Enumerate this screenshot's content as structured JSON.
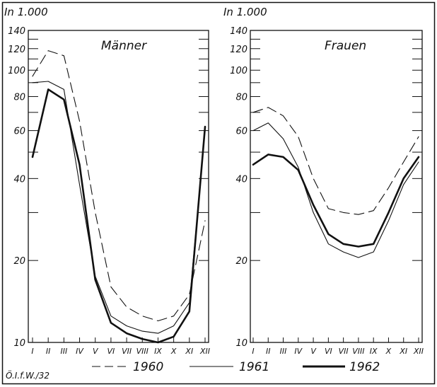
{
  "chart_data": [
    {
      "type": "line",
      "title": "Männer",
      "ylabel": "In 1.000",
      "yscale": "log",
      "ylim": [
        10,
        140
      ],
      "grid": false,
      "categories": [
        "I",
        "II",
        "III",
        "IV",
        "V",
        "VI",
        "VII",
        "VIII",
        "IX",
        "X",
        "XI",
        "XII"
      ],
      "yticks": [
        10,
        20,
        30,
        40,
        50,
        60,
        70,
        80,
        90,
        100,
        110,
        120,
        130,
        140
      ],
      "yticklabels": [
        "10",
        "20",
        "",
        "40",
        "",
        "60",
        "",
        "80",
        "",
        "100",
        "",
        "120",
        "",
        "140"
      ],
      "series": [
        {
          "name": "1960",
          "style": "dashed",
          "width": 1.1,
          "values": [
            95,
            118,
            113,
            65,
            30,
            16,
            13.5,
            12.5,
            12,
            12.5,
            15,
            28
          ]
        },
        {
          "name": "1961",
          "style": "solid",
          "width": 1.1,
          "values": [
            90,
            91,
            85,
            38,
            17.5,
            12.5,
            11.5,
            11,
            10.8,
            11.5,
            14,
            60
          ]
        },
        {
          "name": "1962",
          "style": "solid",
          "width": 2.6,
          "values": [
            48,
            85,
            78,
            45,
            17,
            11.8,
            10.8,
            10.3,
            10,
            10.5,
            13,
            62
          ]
        }
      ]
    },
    {
      "type": "line",
      "title": "Frauen",
      "ylabel": "In 1.000",
      "yscale": "log",
      "ylim": [
        10,
        140
      ],
      "grid": false,
      "categories": [
        "I",
        "II",
        "III",
        "IV",
        "V",
        "VI",
        "VII",
        "VIII",
        "IX",
        "X",
        "XI",
        "XII"
      ],
      "yticks": [
        10,
        20,
        30,
        40,
        50,
        60,
        70,
        80,
        90,
        100,
        110,
        120,
        130,
        140
      ],
      "yticklabels": [
        "10",
        "20",
        "",
        "40",
        "",
        "60",
        "",
        "80",
        "",
        "100",
        "",
        "120",
        "",
        "140"
      ],
      "series": [
        {
          "name": "1960",
          "style": "dashed",
          "width": 1.1,
          "values": [
            70,
            73,
            68,
            57,
            40,
            31,
            30,
            29.5,
            30.5,
            37,
            46,
            57
          ]
        },
        {
          "name": "1961",
          "style": "solid",
          "width": 1.1,
          "values": [
            60,
            64,
            56,
            44,
            30,
            23,
            21.5,
            20.5,
            21.5,
            28,
            38,
            46
          ]
        },
        {
          "name": "1962",
          "style": "solid",
          "width": 2.6,
          "values": [
            45,
            49,
            48,
            43,
            32,
            25,
            23,
            22.5,
            23,
            30,
            40,
            48
          ]
        }
      ]
    }
  ],
  "legend": [
    {
      "label": "1960",
      "style": "dashed"
    },
    {
      "label": "1961",
      "style": "solid"
    },
    {
      "label": "1962",
      "style": "bold"
    }
  ],
  "footer": "Ö.I.f.W./32"
}
